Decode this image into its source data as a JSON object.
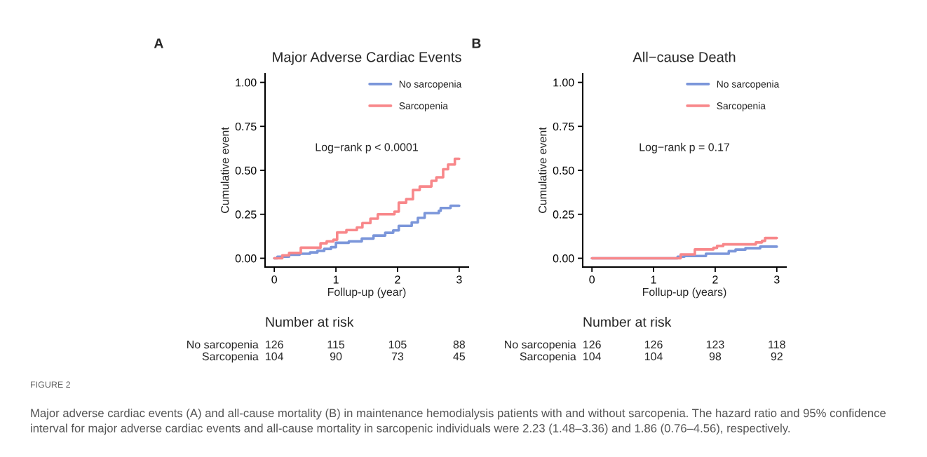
{
  "chart_data": [
    {
      "type": "step",
      "title": "Major Adverse Cardiac Events",
      "xlabel": "Follup-up (year)",
      "ylabel": "Cumulative event",
      "xlim": [
        -0.15,
        3.15
      ],
      "xticks": [
        0,
        1,
        2,
        3
      ],
      "ylim": [
        -0.05,
        1.05
      ],
      "yticks": [
        {
          "value": 0,
          "label": "0.00"
        },
        {
          "value": 0.25,
          "label": "0.25"
        },
        {
          "value": 0.5,
          "label": "0.50"
        },
        {
          "value": 0.75,
          "label": "0.75"
        },
        {
          "value": 1,
          "label": "1.00"
        }
      ],
      "legend": "top right",
      "grid": false,
      "series": [
        {
          "name": "No sarcopenia",
          "color": "#7b96da",
          "x": [
            0,
            0.05,
            0.24,
            0.41,
            0.58,
            0.7,
            0.81,
            0.92,
            1.0,
            1.21,
            1.42,
            1.61,
            1.8,
            1.93,
            2.02,
            2.23,
            2.33,
            2.44,
            2.67,
            2.7,
            2.86,
            3.0
          ],
          "values": [
            0,
            0.009,
            0.02,
            0.026,
            0.033,
            0.042,
            0.053,
            0.063,
            0.088,
            0.096,
            0.112,
            0.129,
            0.145,
            0.158,
            0.184,
            0.204,
            0.23,
            0.257,
            0.27,
            0.286,
            0.299,
            0.299
          ]
        },
        {
          "name": "Sarcopenia",
          "color": "#f8878a",
          "x": [
            0,
            0.13,
            0.24,
            0.43,
            0.75,
            0.85,
            0.96,
            1.02,
            1.17,
            1.34,
            1.43,
            1.56,
            1.68,
            1.95,
            2.02,
            2.14,
            2.25,
            2.36,
            2.55,
            2.63,
            2.74,
            2.82,
            2.93,
            3.0
          ],
          "values": [
            0,
            0.017,
            0.03,
            0.06,
            0.085,
            0.096,
            0.105,
            0.147,
            0.16,
            0.175,
            0.2,
            0.225,
            0.25,
            0.265,
            0.316,
            0.336,
            0.388,
            0.408,
            0.44,
            0.46,
            0.506,
            0.533,
            0.566,
            0.566
          ]
        }
      ],
      "annotations": [
        "A",
        "Log−rank p < 0.0001",
        "Number at risk",
        "No sarcopenia",
        "126",
        "115",
        "105",
        "88",
        "Sarcopenia",
        "104",
        "90",
        "73",
        "45",
        "FIGURE 2",
        "Major adverse cardiac events (A) and all-cause mortality (B) in maintenance hemodialysis patients with and without sarcopenia. The hazard ratio and 95% confidence interval for major adverse cardiac events and all-cause mortality in sarcopenic individuals were 2.23 (1.48–3.36) and 1.86 (0.76–4.56), respectively."
      ]
    },
    {
      "type": "step",
      "title": "All−cause Death",
      "xlabel": "Follup-up (years)",
      "ylabel": "Cumulative event",
      "xlim": [
        -0.15,
        3.15
      ],
      "xticks": [
        0,
        1,
        2,
        3
      ],
      "ylim": [
        -0.05,
        1.05
      ],
      "yticks": [
        {
          "value": 0,
          "label": "0.00"
        },
        {
          "value": 0.25,
          "label": "0.25"
        },
        {
          "value": 0.5,
          "label": "0.50"
        },
        {
          "value": 0.75,
          "label": "0.75"
        },
        {
          "value": 1,
          "label": "1.00"
        }
      ],
      "legend": "top right",
      "grid": false,
      "series": [
        {
          "name": "No sarcopenia",
          "color": "#7b96da",
          "x": [
            0,
            1.39,
            1.5,
            1.85,
            2.22,
            2.33,
            2.49,
            2.73,
            3.0
          ],
          "values": [
            0,
            0.009,
            0.013,
            0.026,
            0.04,
            0.049,
            0.057,
            0.066,
            0.066
          ]
        },
        {
          "name": "Sarcopenia",
          "color": "#f8878a",
          "x": [
            0,
            1.44,
            1.67,
            1.97,
            2.03,
            2.13,
            2.66,
            2.76,
            2.81,
            3.0
          ],
          "values": [
            0,
            0.022,
            0.05,
            0.059,
            0.07,
            0.079,
            0.09,
            0.099,
            0.115,
            0.115
          ]
        }
      ],
      "annotations": [
        "B",
        "Log−rank p = 0.17",
        "Number at risk",
        "No sarcopenia",
        "126",
        "126",
        "123",
        "118",
        "Sarcopenia",
        "104",
        "104",
        "98",
        "92"
      ]
    }
  ]
}
